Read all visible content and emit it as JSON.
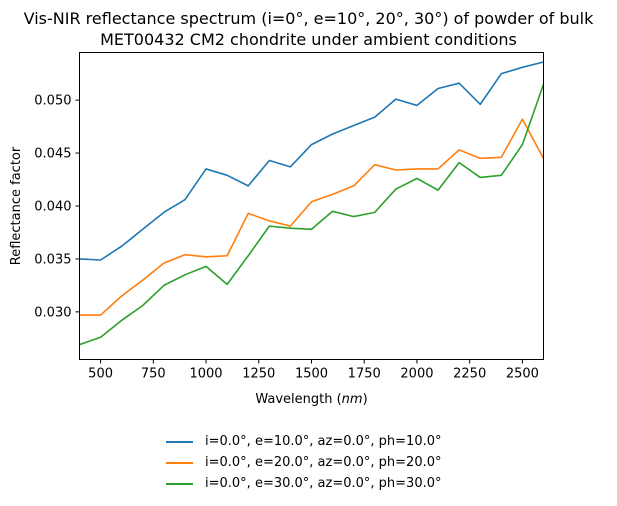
{
  "chart_data": {
    "type": "line",
    "title_line1": "Vis-NIR reflectance spectrum (i=0°, e=10°, 20°, 30°) of powder of bulk",
    "title_line2": "MET00432 CM2 chondrite under ambient conditions",
    "xlabel_prefix": "Wavelength (",
    "xlabel_unit": "nm",
    "xlabel_suffix": ")",
    "ylabel": "Reflectance factor",
    "xlim": [
      400,
      2600
    ],
    "ylim": [
      0.0255,
      0.0545
    ],
    "xticks": [
      500,
      750,
      1000,
      1250,
      1500,
      1750,
      2000,
      2250,
      2500
    ],
    "yticks": [
      0.03,
      0.035,
      0.04,
      0.045,
      0.05
    ],
    "ytick_labels": [
      "0.030",
      "0.035",
      "0.040",
      "0.045",
      "0.050"
    ],
    "grid": false,
    "legend_position": "below",
    "x": [
      400,
      500,
      600,
      700,
      800,
      900,
      1000,
      1100,
      1200,
      1300,
      1400,
      1500,
      1600,
      1700,
      1800,
      1900,
      2000,
      2100,
      2200,
      2300,
      2400,
      2500,
      2600
    ],
    "series": [
      {
        "name": "i=0.0°, e=10.0°, az=0.0°, ph=10.0°",
        "color": "#1f77b4",
        "values": [
          0.035,
          0.0349,
          0.0362,
          0.0378,
          0.0394,
          0.0406,
          0.0435,
          0.0429,
          0.0419,
          0.0443,
          0.0437,
          0.0458,
          0.0468,
          0.0476,
          0.0484,
          0.0501,
          0.0495,
          0.0511,
          0.0516,
          0.0496,
          0.0525,
          0.0531,
          0.0536
        ]
      },
      {
        "name": "i=0.0°, e=20.0°, az=0.0°, ph=20.0°",
        "color": "#ff7f0e",
        "values": [
          0.0297,
          0.0297,
          0.0315,
          0.033,
          0.0346,
          0.0354,
          0.0352,
          0.0353,
          0.0393,
          0.0386,
          0.0381,
          0.0404,
          0.0411,
          0.0419,
          0.0439,
          0.0434,
          0.0435,
          0.0435,
          0.0453,
          0.0445,
          0.0446,
          0.0482,
          0.0445
        ]
      },
      {
        "name": "i=0.0°, e=30.0°, az=0.0°, ph=30.0°",
        "color": "#2ca02c",
        "values": [
          0.0269,
          0.0276,
          0.0292,
          0.0306,
          0.0325,
          0.0335,
          0.0343,
          0.0326,
          0.0353,
          0.0381,
          0.0379,
          0.0378,
          0.0395,
          0.039,
          0.0394,
          0.0416,
          0.0426,
          0.0415,
          0.0441,
          0.0427,
          0.0429,
          0.0458,
          0.0515
        ]
      }
    ]
  }
}
